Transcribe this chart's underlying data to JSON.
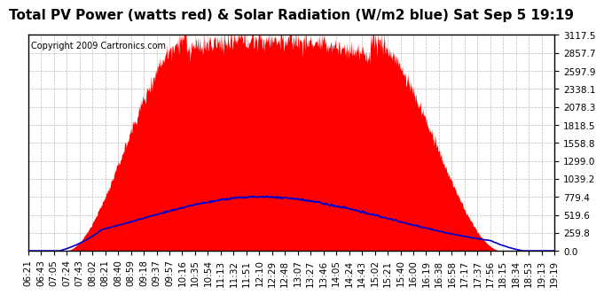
{
  "title": "Total PV Power (watts red) & Solar Radiation (W/m2 blue) Sat Sep 5 19:19",
  "copyright": "Copyright 2009 Cartronics.com",
  "background_color": "#ffffff",
  "plot_bg_color": "#ffffff",
  "grid_color": "#aaaaaa",
  "y_max": 3117.5,
  "y_min": 0.0,
  "y_ticks": [
    0.0,
    259.8,
    519.6,
    779.4,
    1039.2,
    1299.0,
    1558.8,
    1818.5,
    2078.3,
    2338.1,
    2597.9,
    2857.7,
    3117.5
  ],
  "x_labels": [
    "06:21",
    "06:43",
    "07:05",
    "07:24",
    "07:43",
    "08:02",
    "08:21",
    "08:40",
    "08:59",
    "09:18",
    "09:37",
    "09:57",
    "10:16",
    "10:35",
    "10:54",
    "11:13",
    "11:32",
    "11:51",
    "12:10",
    "12:29",
    "12:48",
    "13:07",
    "13:27",
    "13:46",
    "14:05",
    "14:24",
    "14:43",
    "15:02",
    "15:21",
    "15:40",
    "16:00",
    "16:19",
    "16:38",
    "16:58",
    "17:17",
    "17:37",
    "17:56",
    "18:15",
    "18:34",
    "18:53",
    "19:13",
    "19:19"
  ],
  "pv_color": "#ff0000",
  "solar_color": "#0000cc",
  "title_fontsize": 11,
  "tick_fontsize": 7.5,
  "copyright_fontsize": 7
}
